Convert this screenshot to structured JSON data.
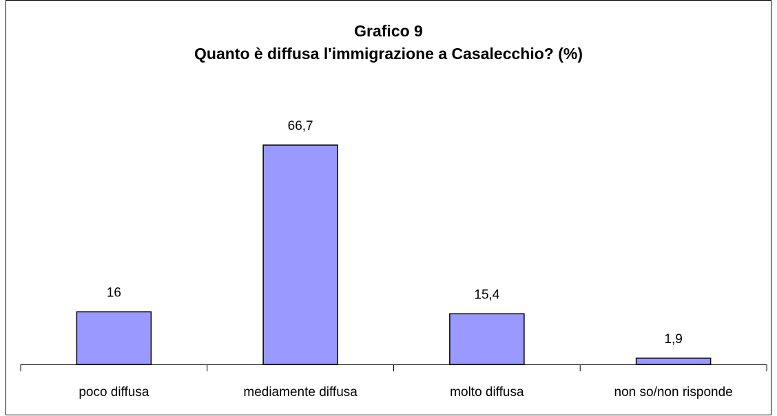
{
  "chart_data": {
    "type": "bar",
    "title": "Grafico 9",
    "subtitle": "Quanto è diffusa l'immigrazione a Casalecchio? (%)",
    "categories": [
      "poco diffusa",
      "mediamente diffusa",
      "molto diffusa",
      "non so/non risponde"
    ],
    "values": [
      16,
      66.7,
      15.4,
      1.9
    ],
    "value_labels": [
      "16",
      "66,7",
      "15,4",
      "1,9"
    ],
    "color": "#9999ff"
  }
}
